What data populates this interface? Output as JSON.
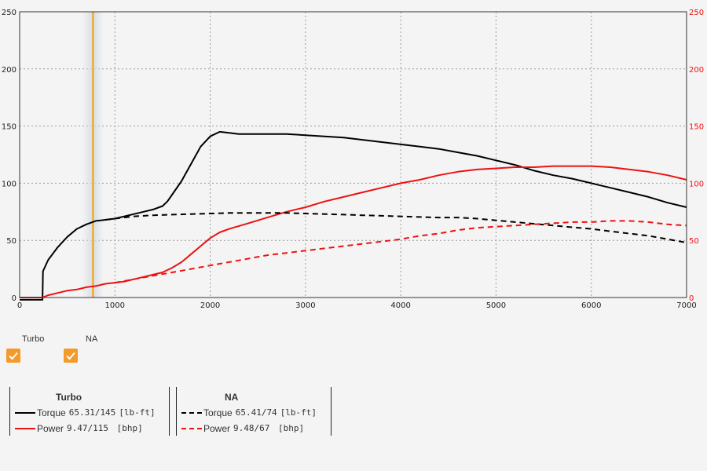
{
  "colors": {
    "torque": "#000000",
    "power": "#ee1111",
    "cursor": "#f5a000",
    "checkbox": "#f39a2b",
    "grid": "#9a9a9a"
  },
  "toggles": [
    {
      "label": "Turbo",
      "checked": true
    },
    {
      "label": "NA",
      "checked": true
    }
  ],
  "legends": [
    {
      "title": "Turbo",
      "rows": [
        {
          "name": "Torque",
          "value": "65.31/145",
          "unit": "[lb-ft]",
          "style": "solid",
          "color_key": "torque"
        },
        {
          "name": "Power",
          "value": "9.47/115",
          "unit": " [bhp]",
          "style": "solid",
          "color_key": "power"
        }
      ]
    },
    {
      "title": "NA",
      "rows": [
        {
          "name": "Torque",
          "value": "65.41/74",
          "unit": "[lb-ft]",
          "style": "dashed",
          "color_key": "torque"
        },
        {
          "name": "Power",
          "value": "9.48/67",
          "unit": " [bhp]",
          "style": "dashed",
          "color_key": "power"
        }
      ]
    }
  ],
  "chart_data": {
    "type": "line",
    "title": "",
    "xlabel": "",
    "ylabel": "",
    "xlim": [
      0,
      7000
    ],
    "ylim": [
      0,
      250
    ],
    "y2lim": [
      0,
      250
    ],
    "grid": true,
    "x_ticks": [
      "0",
      "1000",
      "2000",
      "3000",
      "4000",
      "5000",
      "6000",
      "7000"
    ],
    "y_ticks": [
      "0",
      "50",
      "100",
      "150",
      "200",
      "250"
    ],
    "y2_ticks": [
      "0",
      "50",
      "100",
      "150",
      "200",
      "250"
    ],
    "cursor_x": 770,
    "series": [
      {
        "name": "Torque",
        "group": "Turbo",
        "axis": "left",
        "style": "solid",
        "color_key": "torque",
        "x": [
          0,
          240,
          245,
          300,
          400,
          500,
          600,
          700,
          800,
          900,
          1000,
          1100,
          1200,
          1300,
          1400,
          1500,
          1550,
          1600,
          1700,
          1800,
          1900,
          2000,
          2100,
          2200,
          2300,
          2400,
          2600,
          2800,
          3000,
          3200,
          3400,
          3600,
          3800,
          4000,
          4200,
          4400,
          4600,
          4800,
          5000,
          5200,
          5400,
          5600,
          5800,
          6000,
          6200,
          6400,
          6600,
          6800,
          7000
        ],
        "y": [
          -2,
          -2,
          23,
          33,
          44,
          53,
          60,
          64,
          67,
          68,
          69,
          71,
          73,
          75,
          77,
          80,
          84,
          90,
          102,
          117,
          132,
          141,
          145,
          144,
          143,
          143,
          143,
          143,
          142,
          141,
          140,
          138,
          136,
          134,
          132,
          130,
          127,
          124,
          120,
          116,
          111,
          107,
          104,
          100,
          96,
          92,
          88,
          83,
          79
        ]
      },
      {
        "name": "Power",
        "group": "Turbo",
        "axis": "right",
        "style": "solid",
        "color_key": "power",
        "x": [
          0,
          240,
          300,
          400,
          500,
          600,
          700,
          800,
          900,
          1000,
          1100,
          1200,
          1300,
          1400,
          1500,
          1600,
          1700,
          1800,
          1900,
          2000,
          2100,
          2200,
          2400,
          2600,
          2800,
          3000,
          3200,
          3400,
          3600,
          3800,
          4000,
          4200,
          4400,
          4600,
          4800,
          5000,
          5200,
          5400,
          5600,
          5800,
          6000,
          6200,
          6400,
          6600,
          6800,
          7000
        ],
        "y": [
          0,
          0,
          2,
          4,
          6,
          7,
          9,
          10,
          12,
          13,
          14,
          16,
          18,
          20,
          22,
          26,
          31,
          38,
          45,
          52,
          57,
          60,
          65,
          70,
          75,
          79,
          84,
          88,
          92,
          96,
          100,
          103,
          107,
          110,
          112,
          113,
          114,
          114,
          115,
          115,
          115,
          114,
          112,
          110,
          107,
          103
        ]
      },
      {
        "name": "Torque",
        "group": "NA",
        "axis": "left",
        "style": "dashed",
        "color_key": "torque",
        "x": [
          900,
          1000,
          1200,
          1400,
          1600,
          1800,
          2000,
          2200,
          2400,
          2600,
          2800,
          3000,
          3200,
          3400,
          3600,
          3800,
          4000,
          4200,
          4400,
          4600,
          4800,
          5000,
          5200,
          5400,
          5600,
          5800,
          6000,
          6200,
          6400,
          6600,
          6800,
          7000
        ],
        "y": [
          68,
          69,
          71,
          72,
          72.5,
          73,
          73.5,
          74,
          74,
          74,
          74,
          73.5,
          73,
          72.5,
          72,
          71.5,
          71,
          70.5,
          70,
          70,
          69,
          67.5,
          66,
          64.5,
          63,
          61.5,
          60,
          58,
          56,
          54,
          51,
          48
        ]
      },
      {
        "name": "Power",
        "group": "NA",
        "axis": "right",
        "style": "dashed",
        "color_key": "power",
        "x": [
          1000,
          1200,
          1400,
          1600,
          1800,
          2000,
          2200,
          2400,
          2600,
          2800,
          3000,
          3200,
          3400,
          3600,
          3800,
          4000,
          4200,
          4400,
          4600,
          4800,
          5000,
          5200,
          5400,
          5600,
          5800,
          6000,
          6200,
          6400,
          6600,
          6800,
          7000
        ],
        "y": [
          13,
          16,
          19,
          22,
          25,
          28,
          31,
          34,
          37,
          39,
          41,
          43,
          45,
          47,
          49,
          51,
          54,
          56,
          59,
          61,
          62,
          63,
          64,
          65,
          66,
          66,
          67,
          67,
          66,
          64,
          63
        ]
      }
    ]
  }
}
